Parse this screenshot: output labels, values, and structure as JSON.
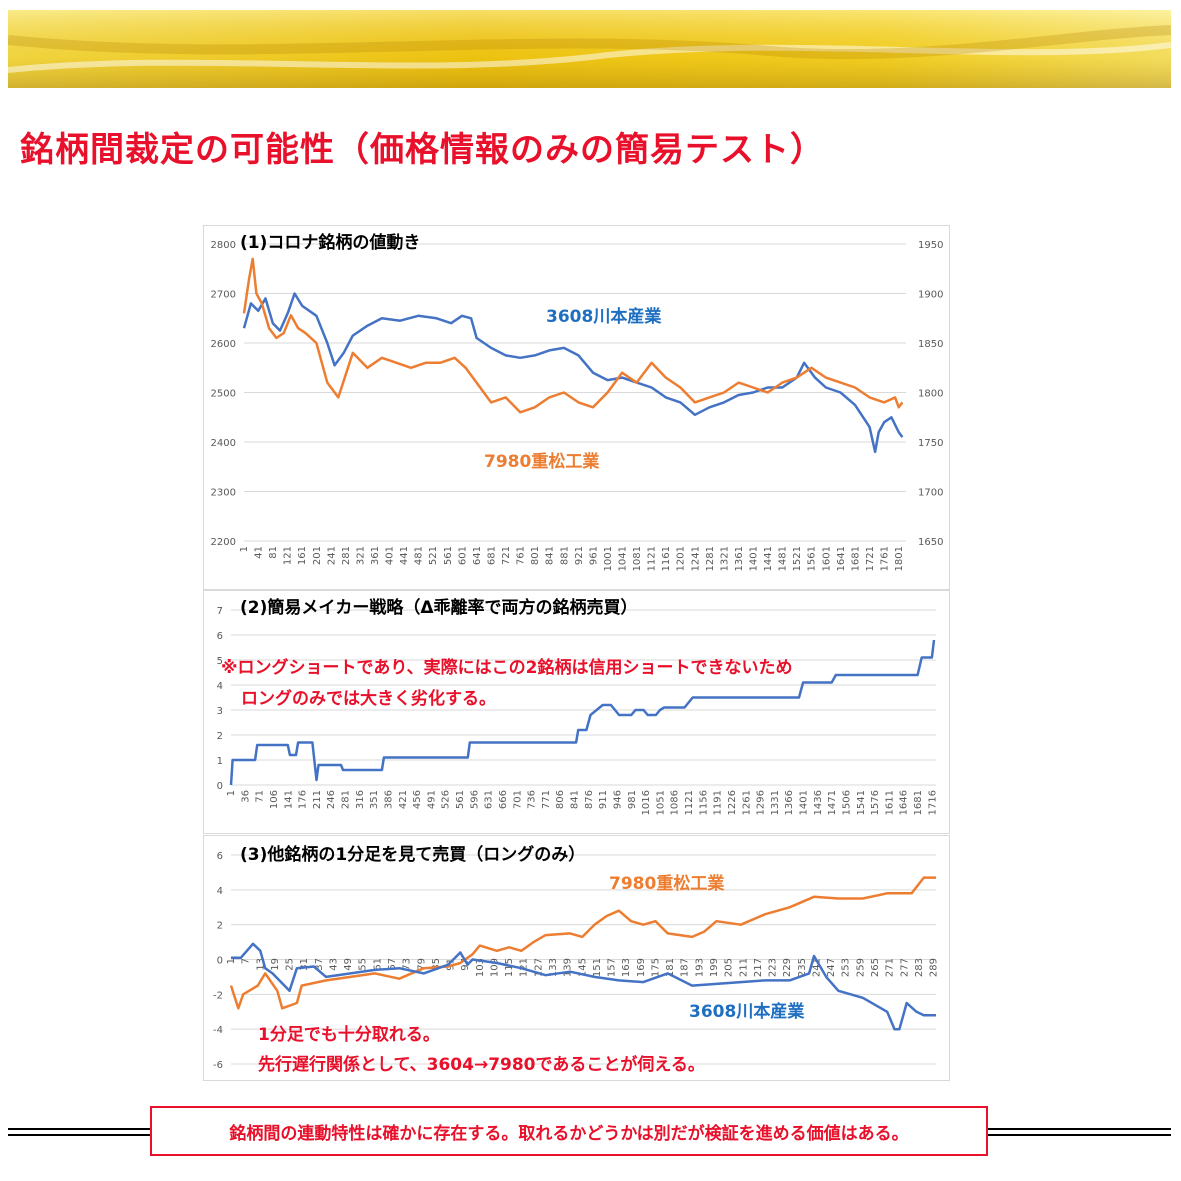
{
  "page": {
    "title": "銘柄間裁定の可能性（価格情報のみの簡易テスト）",
    "conclusion": "銘柄間の連動特性は確かに存在する。取れるかどうかは別だが検証を進める価値はある。"
  },
  "colors": {
    "title": "#e8102a",
    "blue_series": "#4472c4",
    "orange_series": "#ed7d31",
    "blue_label": "#1f6fc0",
    "note": "#e8102a",
    "banner": "#f5d21a"
  },
  "chart_data": [
    {
      "type": "line",
      "title": "(1)コロナ銘柄の値動き",
      "x_ticks": [
        "1",
        "41",
        "81",
        "121",
        "161",
        "201",
        "241",
        "281",
        "321",
        "361",
        "401",
        "441",
        "481",
        "521",
        "561",
        "601",
        "641",
        "681",
        "721",
        "761",
        "801",
        "841",
        "881",
        "921",
        "961",
        "1001",
        "1041",
        "1081",
        "1121",
        "1161",
        "1201",
        "1241",
        "1281",
        "1321",
        "1361",
        "1401",
        "1441",
        "1481",
        "1521",
        "1561",
        "1601",
        "1641",
        "1681",
        "1721",
        "1761",
        "1801"
      ],
      "xlim": [
        1,
        1820
      ],
      "y_left": {
        "ticks": [
          "2200",
          "2300",
          "2400",
          "2500",
          "2600",
          "2700",
          "2800"
        ],
        "ylim": [
          2200,
          2800
        ]
      },
      "y_right": {
        "ticks": [
          "1650",
          "1700",
          "1750",
          "1800",
          "1850",
          "1900",
          "1950"
        ],
        "ylim": [
          1650,
          1950
        ]
      },
      "series": [
        {
          "name": "3608川本産業",
          "axis": "left",
          "color": "#4472c4",
          "x": [
            1,
            20,
            40,
            60,
            80,
            100,
            121,
            140,
            161,
            200,
            230,
            250,
            275,
            300,
            340,
            380,
            430,
            480,
            530,
            570,
            600,
            625,
            640,
            680,
            720,
            760,
            800,
            840,
            880,
            920,
            960,
            1000,
            1040,
            1080,
            1121,
            1160,
            1200,
            1240,
            1280,
            1320,
            1360,
            1400,
            1440,
            1480,
            1520,
            1540,
            1570,
            1600,
            1640,
            1680,
            1720,
            1735,
            1745,
            1760,
            1780,
            1800,
            1810
          ],
          "y": [
            2630,
            2680,
            2665,
            2690,
            2640,
            2625,
            2660,
            2700,
            2675,
            2655,
            2600,
            2555,
            2580,
            2615,
            2635,
            2650,
            2645,
            2655,
            2650,
            2640,
            2655,
            2650,
            2610,
            2590,
            2575,
            2570,
            2575,
            2585,
            2590,
            2575,
            2540,
            2525,
            2530,
            2520,
            2510,
            2490,
            2480,
            2455,
            2470,
            2480,
            2495,
            2500,
            2510,
            2510,
            2530,
            2560,
            2530,
            2510,
            2500,
            2475,
            2430,
            2380,
            2420,
            2440,
            2450,
            2420,
            2410
          ]
        },
        {
          "name": "7980重松工業",
          "axis": "right",
          "color": "#ed7d31",
          "x": [
            1,
            15,
            25,
            35,
            50,
            70,
            90,
            110,
            130,
            150,
            170,
            200,
            230,
            260,
            300,
            340,
            380,
            420,
            460,
            500,
            540,
            580,
            610,
            640,
            660,
            680,
            720,
            760,
            800,
            840,
            880,
            920,
            960,
            1000,
            1040,
            1080,
            1121,
            1160,
            1200,
            1240,
            1280,
            1320,
            1360,
            1400,
            1440,
            1480,
            1520,
            1560,
            1600,
            1640,
            1680,
            1720,
            1760,
            1790,
            1800,
            1810
          ],
          "y": [
            1880,
            1915,
            1935,
            1900,
            1890,
            1865,
            1855,
            1860,
            1878,
            1865,
            1860,
            1850,
            1810,
            1795,
            1840,
            1825,
            1835,
            1830,
            1825,
            1830,
            1830,
            1835,
            1825,
            1810,
            1800,
            1790,
            1795,
            1780,
            1785,
            1795,
            1800,
            1790,
            1785,
            1800,
            1820,
            1810,
            1830,
            1815,
            1805,
            1790,
            1795,
            1800,
            1810,
            1805,
            1800,
            1810,
            1815,
            1825,
            1815,
            1810,
            1805,
            1795,
            1790,
            1795,
            1785,
            1790
          ]
        }
      ],
      "annotations": [
        "3608川本産業",
        "7980重松工業"
      ],
      "grid": true
    },
    {
      "type": "line",
      "title": "(2)簡易メイカー戦略（Δ乖離率で両方の銘柄売買）",
      "x_ticks": [
        "1",
        "36",
        "71",
        "106",
        "141",
        "176",
        "211",
        "246",
        "281",
        "316",
        "351",
        "386",
        "421",
        "456",
        "491",
        "526",
        "561",
        "596",
        "631",
        "666",
        "701",
        "736",
        "771",
        "806",
        "841",
        "876",
        "911",
        "946",
        "981",
        "1016",
        "1051",
        "1086",
        "1121",
        "1156",
        "1191",
        "1226",
        "1261",
        "1296",
        "1331",
        "1366",
        "1401",
        "1436",
        "1471",
        "1506",
        "1541",
        "1576",
        "1611",
        "1646",
        "1681",
        "1716"
      ],
      "xlim": [
        1,
        1725
      ],
      "ylim": [
        0,
        7
      ],
      "y_ticks": [
        "0",
        "1",
        "2",
        "3",
        "4",
        "5",
        "6",
        "7"
      ],
      "series": [
        {
          "name": "",
          "color": "#4472c4",
          "x": [
            1,
            5,
            60,
            65,
            140,
            145,
            160,
            165,
            200,
            210,
            215,
            270,
            275,
            370,
            375,
            580,
            585,
            845,
            850,
            870,
            880,
            910,
            930,
            950,
            980,
            990,
            1010,
            1020,
            1040,
            1050,
            1060,
            1110,
            1130,
            1330,
            1390,
            1400,
            1470,
            1480,
            1580,
            1590,
            1680,
            1690,
            1715,
            1720
          ],
          "y": [
            0,
            1,
            1,
            1.6,
            1.6,
            1.2,
            1.2,
            1.7,
            1.7,
            0.2,
            0.8,
            0.8,
            0.6,
            0.6,
            1.1,
            1.1,
            1.7,
            1.7,
            2.2,
            2.2,
            2.8,
            3.2,
            3.2,
            2.8,
            2.8,
            3.0,
            3.0,
            2.8,
            2.8,
            3.0,
            3.1,
            3.1,
            3.5,
            3.5,
            3.5,
            4.1,
            4.1,
            4.4,
            4.4,
            4.4,
            4.4,
            5.1,
            5.1,
            5.8
          ]
        }
      ],
      "notes": [
        "※ロングショートであり、実際にはこの2銘柄は信用ショートできないため",
        "ロングのみでは大きく劣化する。"
      ],
      "grid": true
    },
    {
      "type": "line",
      "title": "(3)他銘柄の1分足を見て売買（ロングのみ）",
      "x_ticks": [
        "1",
        "7",
        "13",
        "19",
        "25",
        "31",
        "37",
        "43",
        "49",
        "55",
        "61",
        "67",
        "73",
        "79",
        "85",
        "91",
        "97",
        "103",
        "109",
        "115",
        "121",
        "127",
        "133",
        "139",
        "145",
        "151",
        "157",
        "163",
        "169",
        "175",
        "181",
        "187",
        "193",
        "199",
        "205",
        "211",
        "217",
        "223",
        "229",
        "235",
        "241",
        "247",
        "253",
        "259",
        "265",
        "271",
        "277",
        "283",
        "289"
      ],
      "xlim": [
        1,
        290
      ],
      "ylim": [
        -6,
        6
      ],
      "y_ticks": [
        "-6",
        "-4",
        "-2",
        "0",
        "2",
        "4",
        "6"
      ],
      "series": [
        {
          "name": "7980重松工業",
          "color": "#ed7d31",
          "x": [
            1,
            4,
            6,
            12,
            15,
            20,
            22,
            28,
            30,
            40,
            50,
            60,
            70,
            80,
            90,
            95,
            100,
            103,
            110,
            115,
            120,
            125,
            130,
            140,
            145,
            150,
            155,
            160,
            165,
            170,
            175,
            180,
            185,
            190,
            195,
            200,
            210,
            220,
            230,
            240,
            250,
            260,
            270,
            280,
            285,
            290
          ],
          "y": [
            -1.5,
            -2.8,
            -2.0,
            -1.5,
            -0.8,
            -1.8,
            -2.8,
            -2.5,
            -1.5,
            -1.2,
            -1.0,
            -0.8,
            -1.1,
            -0.5,
            -0.4,
            -0.2,
            0.3,
            0.8,
            0.5,
            0.7,
            0.5,
            1.0,
            1.4,
            1.5,
            1.3,
            2.0,
            2.5,
            2.8,
            2.2,
            2.0,
            2.2,
            1.5,
            1.4,
            1.3,
            1.6,
            2.2,
            2.0,
            2.6,
            3.0,
            3.6,
            3.5,
            3.5,
            3.8,
            3.8,
            4.7,
            4.7
          ]
        },
        {
          "name": "3608川本産業",
          "color": "#4472c4",
          "x": [
            1,
            5,
            10,
            13,
            15,
            18,
            25,
            28,
            35,
            40,
            50,
            60,
            70,
            80,
            90,
            95,
            98,
            100,
            110,
            120,
            130,
            140,
            150,
            160,
            170,
            180,
            190,
            200,
            210,
            220,
            230,
            238,
            240,
            245,
            250,
            260,
            265,
            270,
            273,
            275,
            278,
            282,
            285,
            290
          ],
          "y": [
            0.1,
            0.1,
            0.9,
            0.5,
            -0.5,
            -0.8,
            -1.8,
            -0.5,
            -0.4,
            -1.0,
            -0.8,
            -0.6,
            -0.5,
            -0.8,
            -0.3,
            0.4,
            -0.3,
            0.0,
            -0.2,
            -0.5,
            -0.9,
            -0.7,
            -1.0,
            -1.2,
            -1.3,
            -0.8,
            -1.5,
            -1.4,
            -1.3,
            -1.2,
            -1.2,
            -0.8,
            0.2,
            -1.0,
            -1.8,
            -2.2,
            -2.6,
            -3.0,
            -4.0,
            -4.0,
            -2.5,
            -3.0,
            -3.2,
            -3.2
          ]
        }
      ],
      "annotations": [
        "7980重松工業",
        "3608川本産業"
      ],
      "notes": [
        "1分足でも十分取れる。",
        "先行遅行関係として、3604→7980であることが伺える。"
      ],
      "grid": true
    }
  ]
}
